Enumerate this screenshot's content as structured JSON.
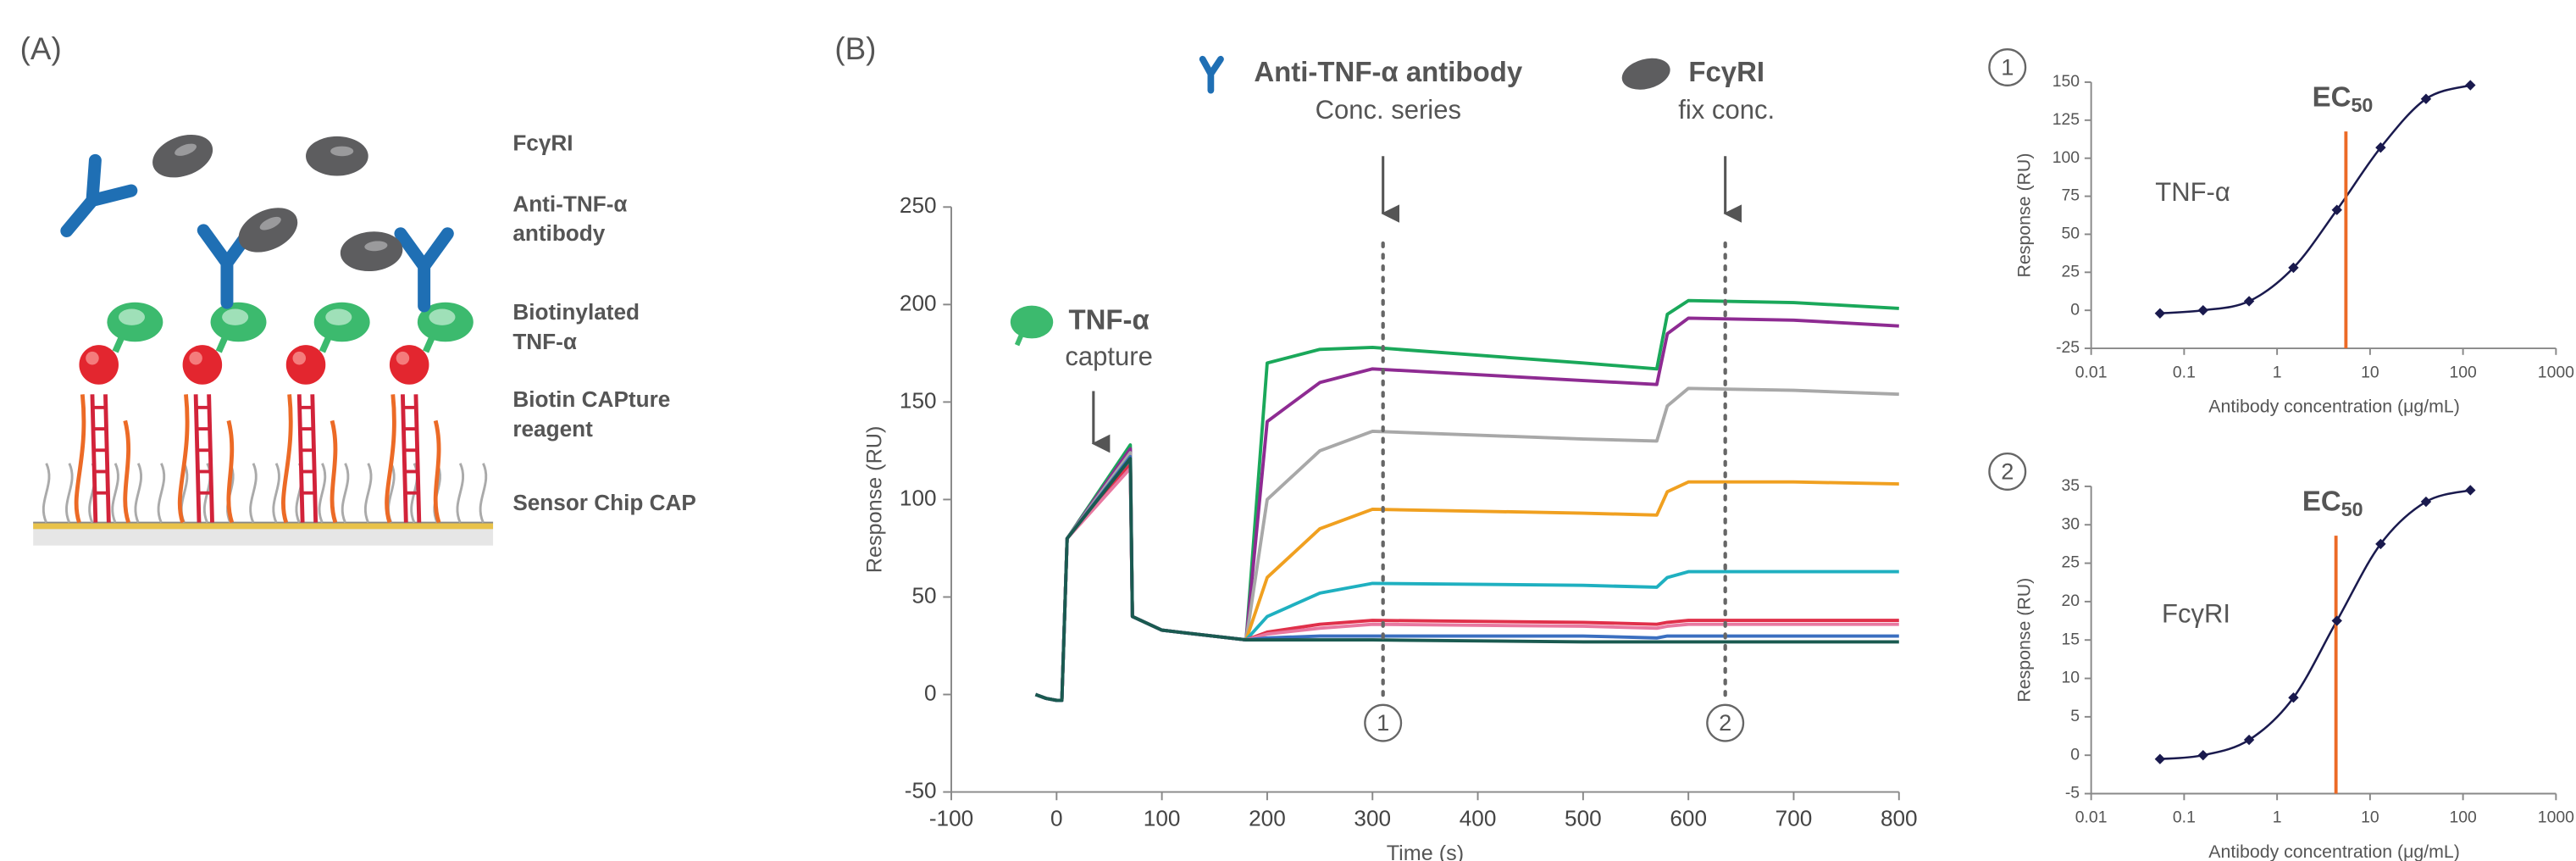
{
  "panel_a": {
    "label": "(A)",
    "legend": [
      {
        "text": [
          "FcγRI"
        ],
        "color": "#6b6b6b"
      },
      {
        "text": [
          "Anti-TNF-α",
          "antibody"
        ],
        "color": "#1f6fb4"
      },
      {
        "text": [
          "Biotinylated",
          "TNF-α"
        ],
        "color": "#2aa55a"
      },
      {
        "text": [
          "Biotin CAPture",
          "reagent"
        ],
        "color": "#ec6a26"
      },
      {
        "text": [
          "Sensor Chip CAP"
        ],
        "color": "#6b6b6b"
      }
    ]
  },
  "chart_data": [
    {
      "type": "line",
      "panel_label": "(B)",
      "xlabel": "Time (s)",
      "ylabel": "Response (RU)",
      "x": [
        -20,
        -10,
        0,
        5,
        10,
        70,
        72,
        100,
        180,
        200,
        250,
        300,
        500,
        570,
        580,
        600,
        700,
        800
      ],
      "xlim": [
        -100,
        800
      ],
      "xticks": [
        -100,
        0,
        100,
        200,
        300,
        400,
        500,
        600,
        700,
        800
      ],
      "ylim": [
        -50,
        250
      ],
      "yticks": [
        -50,
        0,
        50,
        100,
        150,
        200,
        250
      ],
      "series": [
        {
          "color": "#1aa85a",
          "values": [
            0,
            -2,
            -3,
            -3,
            80,
            128,
            40,
            33,
            28,
            170,
            177,
            178,
            170,
            167,
            195,
            202,
            201,
            198
          ]
        },
        {
          "color": "#8e2b92",
          "values": [
            0,
            -2,
            -3,
            -3,
            80,
            126,
            40,
            33,
            28,
            140,
            160,
            167,
            161,
            159,
            185,
            193,
            192,
            189
          ]
        },
        {
          "color": "#a8a8a8",
          "values": [
            0,
            -2,
            -3,
            -3,
            80,
            124,
            40,
            33,
            28,
            100,
            125,
            135,
            131,
            130,
            148,
            157,
            156,
            154
          ]
        },
        {
          "color": "#f0a020",
          "values": [
            0,
            -2,
            -3,
            -3,
            80,
            122,
            40,
            33,
            28,
            60,
            85,
            95,
            93,
            92,
            104,
            109,
            109,
            108
          ]
        },
        {
          "color": "#1fb0c0",
          "values": [
            0,
            -2,
            -3,
            -3,
            80,
            120,
            40,
            33,
            28,
            40,
            52,
            57,
            56,
            55,
            60,
            63,
            63,
            63
          ]
        },
        {
          "color": "#e0304a",
          "values": [
            0,
            -2,
            -3,
            -3,
            80,
            118,
            40,
            33,
            28,
            32,
            36,
            38,
            37,
            36,
            37,
            38,
            38,
            38
          ]
        },
        {
          "color": "#e878a0",
          "values": [
            0,
            -2,
            -3,
            -3,
            80,
            116,
            40,
            33,
            28,
            31,
            34,
            36,
            35,
            34,
            35,
            36,
            36,
            36
          ]
        },
        {
          "color": "#3a6fc0",
          "values": [
            0,
            -2,
            -3,
            -3,
            80,
            122,
            40,
            33,
            28,
            29,
            30,
            30,
            30,
            29,
            30,
            30,
            30,
            30
          ]
        },
        {
          "color": "#1a5a50",
          "values": [
            0,
            -2,
            -3,
            -3,
            80,
            121,
            40,
            33,
            28,
            28,
            28,
            28,
            27,
            27,
            27,
            27,
            27,
            27
          ]
        }
      ],
      "annotations": [
        {
          "title": "Anti-TNF-α antibody",
          "subtitle": "Conc. series",
          "x": 310,
          "color": "#1f6fb4"
        },
        {
          "title": "FcγRI",
          "subtitle": "fix conc.",
          "x": 635,
          "color": "#6b6b6b"
        },
        {
          "title": "TNF-α",
          "subtitle": "capture",
          "x": 35,
          "color": "#2aa55a"
        }
      ],
      "reference_lines": [
        {
          "x": 310,
          "label": "1"
        },
        {
          "x": 635,
          "label": "2"
        }
      ]
    },
    {
      "type": "scatter",
      "panel_number": "1",
      "annotation": "TNF-α",
      "xlabel": "Antibody concentration (μg/mL)",
      "ylabel": "Response (RU)",
      "xscale": "log",
      "x": [
        0.055,
        0.16,
        0.5,
        1.5,
        4.4,
        13,
        40,
        120
      ],
      "values": [
        -2,
        0,
        6,
        28,
        66,
        107,
        139,
        148
      ],
      "color": "#1a1a4e",
      "xlim": [
        0.01,
        1000
      ],
      "xticks": [
        0.01,
        0.1,
        1,
        10,
        100,
        1000
      ],
      "ylim": [
        -25,
        150
      ],
      "yticks": [
        -25,
        0,
        25,
        50,
        75,
        100,
        125,
        150
      ],
      "ec50": {
        "x": 5.5,
        "label": "EC",
        "subscript": "50",
        "color": "#ec6a26"
      }
    },
    {
      "type": "scatter",
      "panel_number": "2",
      "annotation": "FcγRI",
      "xlabel": "Antibody concentration (μg/mL)",
      "ylabel": "Response (RU)",
      "xscale": "log",
      "x": [
        0.055,
        0.16,
        0.5,
        1.5,
        4.4,
        13,
        40,
        120
      ],
      "values": [
        -0.5,
        0,
        2,
        7.5,
        17.5,
        27.5,
        33,
        34.5
      ],
      "color": "#1a1a4e",
      "xlim": [
        0.01,
        1000
      ],
      "xticks": [
        0.01,
        0.1,
        1,
        10,
        100,
        1000
      ],
      "ylim": [
        -5,
        35
      ],
      "yticks": [
        -5,
        0,
        5,
        10,
        15,
        20,
        25,
        30,
        35
      ],
      "ec50": {
        "x": 4.3,
        "label": "EC",
        "subscript": "50",
        "color": "#ec6a26"
      }
    }
  ]
}
